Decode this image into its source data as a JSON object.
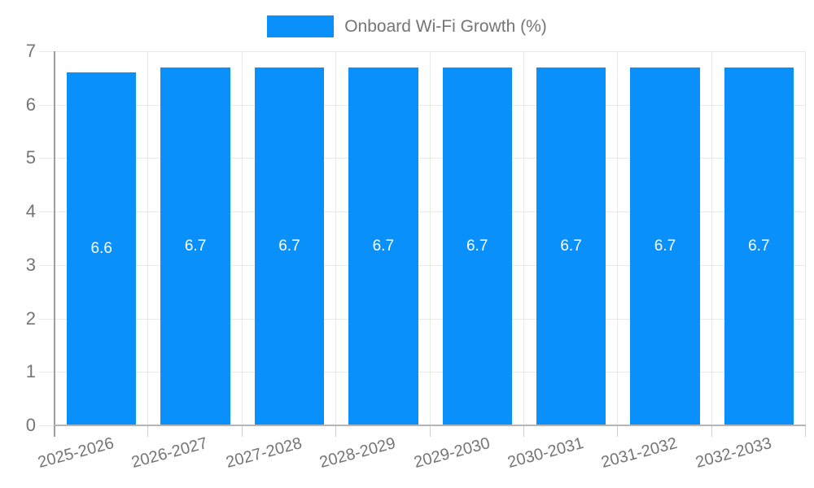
{
  "chart_data": {
    "type": "bar",
    "title": "",
    "categories": [
      "2025-2026",
      "2026-2027",
      "2027-2028",
      "2028-2029",
      "2029-2030",
      "2030-2031",
      "2031-2032",
      "2032-2033"
    ],
    "series": [
      {
        "name": "Onboard Wi-Fi Growth (%)",
        "values": [
          6.6,
          6.7,
          6.7,
          6.7,
          6.7,
          6.7,
          6.7,
          6.7
        ]
      }
    ],
    "bar_labels": [
      "6.6",
      "6.7",
      "6.7",
      "6.7",
      "6.7",
      "6.7",
      "6.7",
      "6.7"
    ],
    "xlabel": "",
    "ylabel": "",
    "ylim": [
      0,
      7
    ],
    "yticks": [
      0,
      1,
      2,
      3,
      4,
      5,
      6,
      7
    ],
    "grid": true,
    "legend_position": "top-center",
    "x_label_rotation_deg": -15,
    "colors": {
      "bar": "#0a90fa",
      "grid": "#e9e9e9",
      "axis_left": "#9e9e9e",
      "axis_bottom": "#b5b5b5",
      "text": "#757575",
      "value_label": "#ffffff"
    }
  }
}
